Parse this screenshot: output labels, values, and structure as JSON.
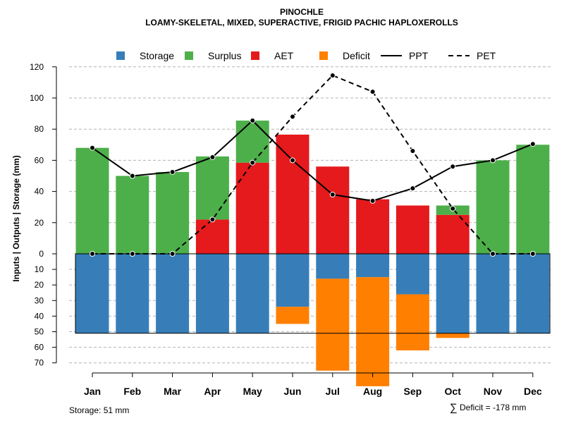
{
  "chart_data": {
    "type": "bar",
    "title": "PINOCHLE",
    "subtitle": "LOAMY-SKELETAL, MIXED, SUPERACTIVE, FRIGID PACHIC HAPLOXEROLLS",
    "ylabel": "Inputs | Outputs | Storage    (mm)",
    "categories": [
      "Jan",
      "Feb",
      "Mar",
      "Apr",
      "May",
      "Jun",
      "Jul",
      "Aug",
      "Sep",
      "Oct",
      "Nov",
      "Dec"
    ],
    "upper_ylim": [
      0,
      120
    ],
    "upper_ticks": [
      "0",
      "20",
      "40",
      "60",
      "80",
      "100",
      "120"
    ],
    "lower_ylim": [
      0,
      70
    ],
    "lower_ticks": [
      "10",
      "20",
      "30",
      "40",
      "50",
      "60",
      "70"
    ],
    "series": [
      {
        "name": "Storage",
        "color": "#377EB8",
        "values": [
          51,
          51,
          51,
          51,
          51,
          34,
          16,
          15,
          26,
          51,
          51,
          51
        ]
      },
      {
        "name": "Surplus",
        "color": "#4DAF4A",
        "values": [
          68,
          50,
          52.5,
          40.5,
          27,
          0,
          0,
          0,
          0,
          6,
          60,
          70
        ]
      },
      {
        "name": "AET",
        "color": "#E41A1C",
        "values": [
          0,
          0,
          0,
          22,
          58.5,
          76.5,
          56,
          35,
          31,
          25,
          0,
          0
        ]
      },
      {
        "name": "Deficit",
        "color": "#FF7F00",
        "values": [
          0,
          0,
          0,
          0,
          0,
          11,
          59,
          70,
          36,
          3,
          0,
          0
        ]
      },
      {
        "name": "PPT",
        "style": "solid",
        "values": [
          68,
          50,
          52.5,
          62,
          85.5,
          60,
          38,
          34,
          42,
          56,
          60,
          70.5
        ]
      },
      {
        "name": "PET",
        "style": "dashed",
        "values": [
          0,
          0,
          0,
          22,
          58.5,
          88,
          114.5,
          104,
          66,
          29,
          0,
          0
        ]
      }
    ],
    "legend": [
      "Storage",
      "Surplus",
      "AET",
      "Deficit",
      "PPT",
      "PET"
    ],
    "legend_position": "top-center",
    "storage_capacity": 51,
    "grid": true
  },
  "footer": {
    "storage_note": "Storage: 51 mm",
    "deficit_symbol": "∑",
    "deficit_note": "Deficit = -178 mm"
  }
}
